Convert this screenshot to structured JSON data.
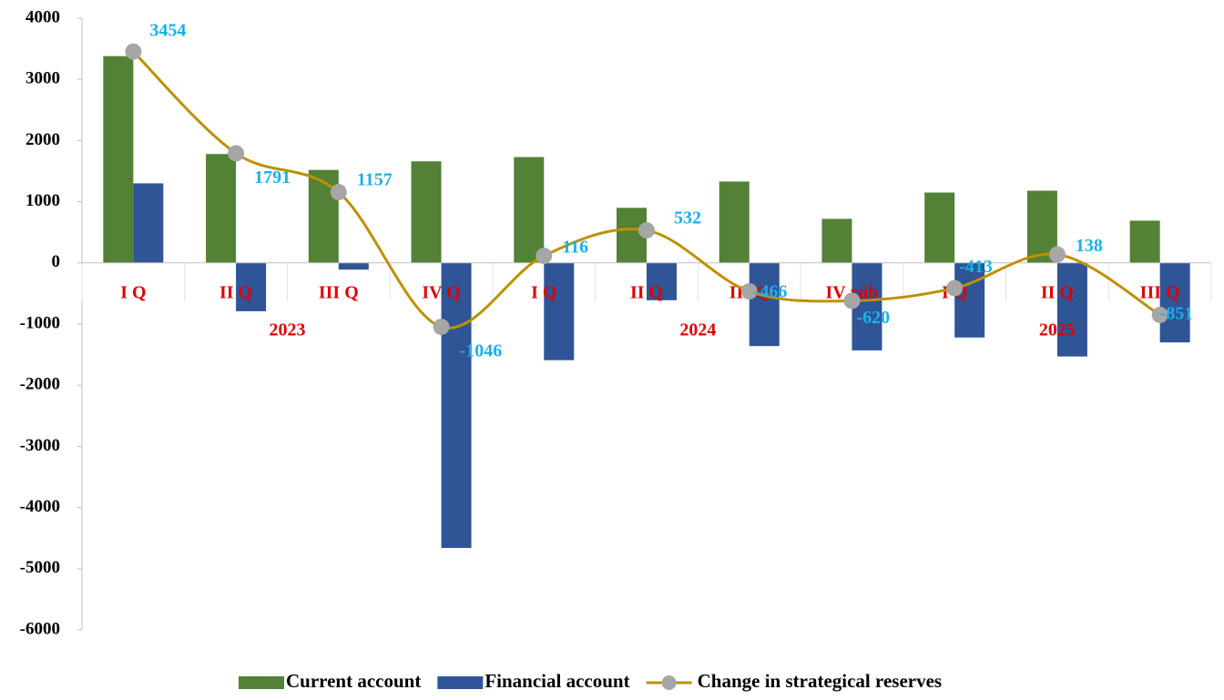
{
  "chart_data": {
    "type": "bar",
    "categories": [
      "I Q",
      "II Q",
      "III Q",
      "IV Q",
      "I Q",
      "II Q",
      "III Q",
      "IV rüb",
      "I Q",
      "II Q",
      "III Q"
    ],
    "groups": [
      {
        "label": "2023",
        "count": 4
      },
      {
        "label": "2024",
        "count": 4
      },
      {
        "label": "2025",
        "count": 3
      }
    ],
    "series": [
      {
        "name": "Current account",
        "color": "#538135",
        "type": "bar",
        "values": [
          3380,
          1780,
          1520,
          1660,
          1730,
          900,
          1330,
          720,
          1150,
          1180,
          690
        ]
      },
      {
        "name": "Financial account",
        "color": "#2f5597",
        "type": "bar",
        "values": [
          1300,
          -790,
          -110,
          -4660,
          -1590,
          -610,
          -1360,
          -1430,
          -1220,
          -1530,
          -1300
        ]
      },
      {
        "name": "Change in strategical reserves",
        "color": "#bf9000",
        "marker_color": "#a6a6a6",
        "type": "line",
        "smooth": true,
        "values": [
          3454,
          1791,
          1157,
          -1046,
          116,
          532,
          -466,
          -620,
          -413,
          138,
          -851
        ]
      }
    ],
    "ylim": [
      -6000,
      4000
    ],
    "yticks": [
      -6000,
      -5000,
      -4000,
      -3000,
      -2000,
      -1000,
      0,
      1000,
      2000,
      3000,
      4000
    ],
    "legend": "bottom"
  }
}
